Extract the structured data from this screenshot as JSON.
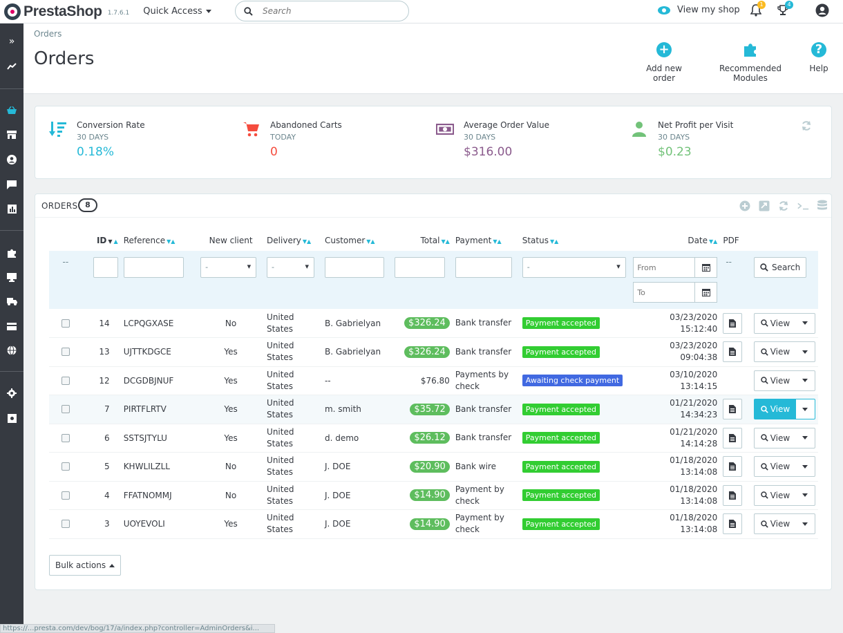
{
  "header": {
    "logo_prefix": "Presta",
    "logo_suffix": "Shop",
    "version": "1.7.6.1",
    "quick_access": "Quick Access",
    "search_placeholder": "Search",
    "view_shop": "View my shop",
    "notifications_count": "1",
    "trophy_count": "4"
  },
  "page": {
    "breadcrumb": "Orders",
    "title": "Orders",
    "actions": [
      {
        "label": "Add new order",
        "icon": "plus-circle-icon"
      },
      {
        "label": "Recommended Modules",
        "icon": "puzzle-icon"
      },
      {
        "label": "Help",
        "icon": "question-circle-icon"
      }
    ]
  },
  "kpis": [
    {
      "title": "Conversion Rate",
      "period": "30 DAYS",
      "value": "0.18%",
      "color": "#25b9d7",
      "icon": "sort-icon"
    },
    {
      "title": "Abandoned Carts",
      "period": "TODAY",
      "value": "0",
      "color": "#f54c3e",
      "icon": "cart-icon"
    },
    {
      "title": "Average Order Value",
      "period": "30 DAYS",
      "value": "$316.00",
      "color": "#8a5a8c",
      "icon": "money-icon"
    },
    {
      "title": "Net Profit per Visit",
      "period": "30 DAYS",
      "value": "$0.23",
      "color": "#72c279",
      "icon": "user-icon"
    }
  ],
  "orders": {
    "title": "ORDERS",
    "count": "8",
    "columns": {
      "id": "ID",
      "reference": "Reference",
      "new_client": "New client",
      "delivery": "Delivery",
      "customer": "Customer",
      "total": "Total",
      "payment": "Payment",
      "status": "Status",
      "date": "Date",
      "pdf": "PDF"
    },
    "filters": {
      "dash": "--",
      "select_default": "-",
      "date_from_placeholder": "From",
      "date_to_placeholder": "To",
      "pdf_dash": "--",
      "search_label": "Search"
    },
    "rows": [
      {
        "id": "14",
        "reference": "LCPQGXASE",
        "new_client": "No",
        "delivery_1": "United",
        "delivery_2": "States",
        "customer": "B. Gabrielyan",
        "total": "$326.24",
        "total_badge": true,
        "payment_1": "Bank transfer",
        "payment_2": "",
        "status": "Payment accepted",
        "status_color": "#32cd32",
        "date": "03/23/2020",
        "time": "15:12:40",
        "pdf": true
      },
      {
        "id": "13",
        "reference": "UJTTKDGCE",
        "new_client": "Yes",
        "delivery_1": "United",
        "delivery_2": "States",
        "customer": "B. Gabrielyan",
        "total": "$326.24",
        "total_badge": true,
        "payment_1": "Bank transfer",
        "payment_2": "",
        "status": "Payment accepted",
        "status_color": "#32cd32",
        "date": "03/23/2020",
        "time": "09:04:38",
        "pdf": true
      },
      {
        "id": "12",
        "reference": "DCGDBJNUF",
        "new_client": "Yes",
        "delivery_1": "United",
        "delivery_2": "States",
        "customer": "--",
        "total": "$76.80",
        "total_badge": false,
        "payment_1": "Payments by",
        "payment_2": "check",
        "status": "Awaiting check payment",
        "status_color": "#4169e1",
        "date": "03/10/2020",
        "time": "13:14:15",
        "pdf": false
      },
      {
        "id": "7",
        "reference": "PIRTFLRTV",
        "new_client": "Yes",
        "delivery_1": "United",
        "delivery_2": "States",
        "customer": "m. smith",
        "total": "$35.72",
        "total_badge": true,
        "payment_1": "Bank transfer",
        "payment_2": "",
        "status": "Payment accepted",
        "status_color": "#32cd32",
        "date": "01/21/2020",
        "time": "14:34:23",
        "pdf": true
      },
      {
        "id": "6",
        "reference": "SSTSJTYLU",
        "new_client": "Yes",
        "delivery_1": "United",
        "delivery_2": "States",
        "customer": "d. demo",
        "total": "$26.12",
        "total_badge": true,
        "payment_1": "Bank transfer",
        "payment_2": "",
        "status": "Payment accepted",
        "status_color": "#32cd32",
        "date": "01/21/2020",
        "time": "14:14:28",
        "pdf": true
      },
      {
        "id": "5",
        "reference": "KHWLILZLL",
        "new_client": "No",
        "delivery_1": "United",
        "delivery_2": "States",
        "customer": "J. DOE",
        "total": "$20.90",
        "total_badge": true,
        "payment_1": "Bank wire",
        "payment_2": "",
        "status": "Payment accepted",
        "status_color": "#32cd32",
        "date": "01/18/2020",
        "time": "13:14:08",
        "pdf": true
      },
      {
        "id": "4",
        "reference": "FFATNOMMJ",
        "new_client": "No",
        "delivery_1": "United",
        "delivery_2": "States",
        "customer": "J. DOE",
        "total": "$14.90",
        "total_badge": true,
        "payment_1": "Payment by",
        "payment_2": "check",
        "status": "Payment accepted",
        "status_color": "#32cd32",
        "date": "01/18/2020",
        "time": "13:14:08",
        "pdf": true
      },
      {
        "id": "3",
        "reference": "UOYEVOLI",
        "new_client": "Yes",
        "delivery_1": "United",
        "delivery_2": "States",
        "customer": "J. DOE",
        "total": "$14.90",
        "total_badge": true,
        "payment_1": "Payment by",
        "payment_2": "check",
        "status": "Payment accepted",
        "status_color": "#32cd32",
        "date": "01/18/2020",
        "time": "13:14:08",
        "pdf": true
      }
    ],
    "view_label": "View",
    "bulk_actions": "Bulk actions"
  },
  "statusbar": {
    "url": "https://...presta.com/dev/bog/17/a/index.php?controller=AdminOrders&i..."
  }
}
